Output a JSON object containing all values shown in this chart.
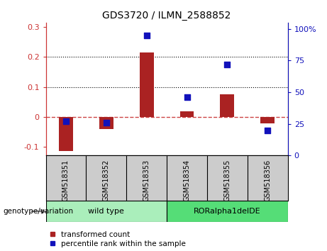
{
  "title": "GDS3720 / ILMN_2588852",
  "samples": [
    "GSM518351",
    "GSM518352",
    "GSM518353",
    "GSM518354",
    "GSM518355",
    "GSM518356"
  ],
  "transformed_count": [
    -0.115,
    -0.04,
    0.215,
    0.018,
    0.075,
    -0.022
  ],
  "percentile_rank": [
    27,
    26,
    95,
    46,
    72,
    20
  ],
  "bar_color": "#AA2222",
  "dot_color": "#1111BB",
  "zero_line_color": "#CC4444",
  "left_ylim": [
    -0.13,
    0.315
  ],
  "right_ylim": [
    0,
    105
  ],
  "left_yticks": [
    -0.1,
    0.0,
    0.1,
    0.2,
    0.3
  ],
  "right_yticks": [
    0,
    25,
    50,
    75,
    100
  ],
  "right_yticklabels": [
    "0",
    "25",
    "50",
    "75",
    "100%"
  ],
  "left_yticklabels": [
    "-0.1",
    "0",
    "0.1",
    "0.2",
    "0.3"
  ],
  "left_tick_color": "#CC3333",
  "right_tick_color": "#1111BB",
  "genotype_groups": [
    {
      "label": "wild type",
      "indices": [
        0,
        1,
        2
      ],
      "color": "#AAEEBB"
    },
    {
      "label": "RORalpha1delDE",
      "indices": [
        3,
        4,
        5
      ],
      "color": "#55DD77"
    }
  ],
  "genotype_label": "genotype/variation",
  "legend_items": [
    {
      "label": "transformed count",
      "color": "#AA2222"
    },
    {
      "label": "percentile rank within the sample",
      "color": "#1111BB"
    }
  ],
  "grid_yticks": [
    0.1,
    0.2
  ],
  "grid_color": "black",
  "bar_width": 0.35,
  "dot_size": 28,
  "label_bg_color": "#CCCCCC"
}
